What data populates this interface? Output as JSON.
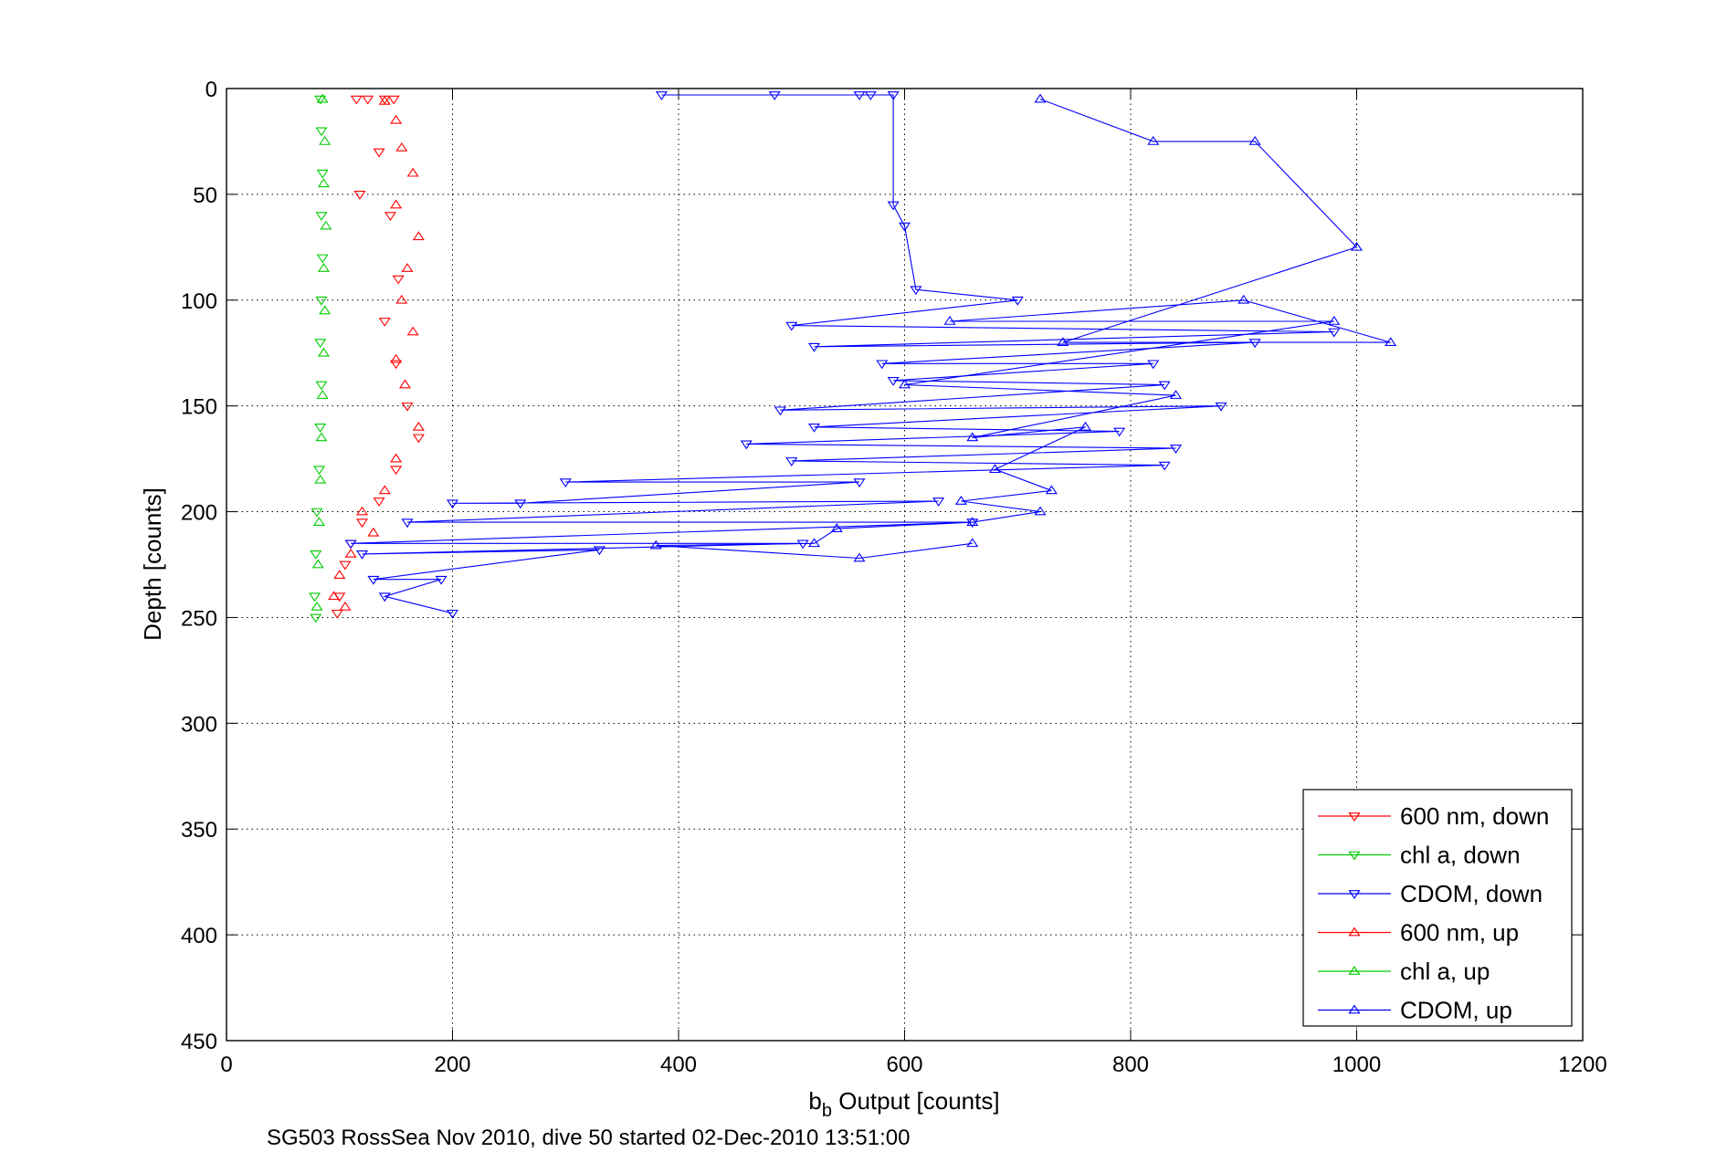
{
  "chart_data": {
    "type": "scatter",
    "title": "",
    "xlabel": {
      "base": "b",
      "sub": "b",
      "rest": " Output [counts]"
    },
    "ylabel": "Depth [counts]",
    "caption": "SG503 RossSea Nov 2010, dive 50 started 02-Dec-2010 13:51:00",
    "xlim": [
      0,
      1200
    ],
    "ylim": [
      0,
      450
    ],
    "y_reversed": true,
    "grid": true,
    "xticks": [
      "0",
      "200",
      "400",
      "600",
      "800",
      "1000",
      "1200"
    ],
    "yticks": [
      "0",
      "50",
      "100",
      "150",
      "200",
      "250",
      "300",
      "350",
      "400",
      "450"
    ],
    "legend_position": "bottom-right",
    "series": [
      {
        "name": "600 nm, down",
        "color": "#ff0000",
        "marker": "triangle-down",
        "connected": false,
        "points": [
          [
            115,
            5
          ],
          [
            125,
            5
          ],
          [
            140,
            5
          ],
          [
            148,
            5
          ],
          [
            118,
            50
          ],
          [
            135,
            30
          ],
          [
            145,
            60
          ],
          [
            152,
            90
          ],
          [
            140,
            110
          ],
          [
            150,
            130
          ],
          [
            160,
            150
          ],
          [
            170,
            165
          ],
          [
            150,
            180
          ],
          [
            135,
            195
          ],
          [
            120,
            205
          ],
          [
            110,
            215
          ],
          [
            105,
            225
          ],
          [
            100,
            240
          ],
          [
            98,
            248
          ]
        ]
      },
      {
        "name": "chl a, down",
        "color": "#00cc00",
        "marker": "triangle-down",
        "connected": false,
        "points": [
          [
            83,
            5
          ],
          [
            84,
            20
          ],
          [
            85,
            40
          ],
          [
            84,
            60
          ],
          [
            85,
            80
          ],
          [
            84,
            100
          ],
          [
            83,
            120
          ],
          [
            84,
            140
          ],
          [
            83,
            160
          ],
          [
            82,
            180
          ],
          [
            80,
            200
          ],
          [
            79,
            220
          ],
          [
            78,
            240
          ],
          [
            79,
            250
          ]
        ]
      },
      {
        "name": "CDOM, down",
        "color": "#0000ff",
        "marker": "triangle-down",
        "connected": true,
        "points": [
          [
            385,
            3
          ],
          [
            485,
            3
          ],
          [
            560,
            3
          ],
          [
            570,
            3
          ],
          [
            590,
            3
          ],
          [
            590,
            55
          ],
          [
            600,
            65
          ],
          [
            610,
            95
          ],
          [
            700,
            100
          ],
          [
            500,
            112
          ],
          [
            980,
            115
          ],
          [
            520,
            122
          ],
          [
            910,
            120
          ],
          [
            580,
            130
          ],
          [
            820,
            130
          ],
          [
            590,
            138
          ],
          [
            830,
            140
          ],
          [
            490,
            152
          ],
          [
            880,
            150
          ],
          [
            520,
            160
          ],
          [
            790,
            162
          ],
          [
            460,
            168
          ],
          [
            840,
            170
          ],
          [
            500,
            176
          ],
          [
            830,
            178
          ],
          [
            300,
            186
          ],
          [
            560,
            186
          ],
          [
            260,
            196
          ],
          [
            200,
            196
          ],
          [
            630,
            195
          ],
          [
            160,
            205
          ],
          [
            660,
            205
          ],
          [
            110,
            215
          ],
          [
            510,
            215
          ],
          [
            120,
            220
          ],
          [
            330,
            218
          ],
          [
            130,
            232
          ],
          [
            190,
            232
          ],
          [
            140,
            240
          ],
          [
            200,
            248
          ]
        ]
      },
      {
        "name": "600 nm, up",
        "color": "#ff0000",
        "marker": "triangle-up",
        "connected": false,
        "points": [
          [
            140,
            6
          ],
          [
            150,
            15
          ],
          [
            155,
            28
          ],
          [
            165,
            40
          ],
          [
            150,
            55
          ],
          [
            170,
            70
          ],
          [
            160,
            85
          ],
          [
            155,
            100
          ],
          [
            165,
            115
          ],
          [
            150,
            128
          ],
          [
            158,
            140
          ],
          [
            170,
            160
          ],
          [
            150,
            175
          ],
          [
            140,
            190
          ],
          [
            120,
            200
          ],
          [
            130,
            210
          ],
          [
            110,
            220
          ],
          [
            100,
            230
          ],
          [
            95,
            240
          ],
          [
            105,
            245
          ]
        ]
      },
      {
        "name": "chl a, up",
        "color": "#00cc00",
        "marker": "triangle-up",
        "connected": false,
        "points": [
          [
            85,
            5
          ],
          [
            87,
            25
          ],
          [
            86,
            45
          ],
          [
            88,
            65
          ],
          [
            86,
            85
          ],
          [
            87,
            105
          ],
          [
            86,
            125
          ],
          [
            85,
            145
          ],
          [
            84,
            165
          ],
          [
            83,
            185
          ],
          [
            82,
            205
          ],
          [
            81,
            225
          ],
          [
            80,
            245
          ]
        ]
      },
      {
        "name": "CDOM, up",
        "color": "#0000ff",
        "marker": "triangle-up",
        "connected": true,
        "points": [
          [
            720,
            5
          ],
          [
            820,
            25
          ],
          [
            910,
            25
          ],
          [
            1000,
            75
          ],
          [
            740,
            120
          ],
          [
            1030,
            120
          ],
          [
            900,
            100
          ],
          [
            640,
            110
          ],
          [
            980,
            110
          ],
          [
            600,
            140
          ],
          [
            840,
            145
          ],
          [
            660,
            165
          ],
          [
            760,
            160
          ],
          [
            680,
            180
          ],
          [
            730,
            190
          ],
          [
            650,
            195
          ],
          [
            720,
            200
          ],
          [
            660,
            205
          ],
          [
            540,
            208
          ],
          [
            520,
            215
          ],
          [
            380,
            216
          ],
          [
            560,
            222
          ],
          [
            660,
            215
          ]
        ]
      }
    ]
  }
}
